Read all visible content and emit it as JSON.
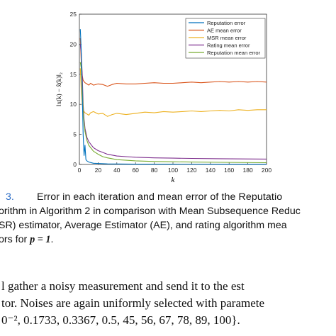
{
  "caption": {
    "fig_label": "3.",
    "line1_text": "Error in each iteration and mean error of the Reputatio",
    "line2": "orithm in Algorithm 2 in comparison with Mean Subsequence Reduc",
    "line3": "SR) estimator, Average Estimator (AE), and rating algorithm mea",
    "line4_prefix": "ors for ",
    "line4_math": "p = 1",
    "line4_suffix": "."
  },
  "body_text": {
    "line1": "l gather a noisy measurement and send it to the est",
    "line2": "tor. Noises are again uniformly selected with paramete",
    "line3": "0⁻², 0.1733, 0.3367, 0.5, 45, 56, 67, 78, 89, 100}."
  },
  "chart_data": {
    "type": "line",
    "xlabel": "k",
    "ylabel": "‖x(k) − x̂(k)‖₂",
    "xlim": [
      0,
      200
    ],
    "ylim": [
      0,
      25
    ],
    "xticks": [
      0,
      20,
      40,
      60,
      80,
      100,
      120,
      140,
      160,
      180,
      200
    ],
    "yticks": [
      0,
      5,
      10,
      15,
      20,
      25
    ],
    "legend_position": "top-right",
    "series": [
      {
        "name": "Reputation error",
        "color": "#0072bd",
        "x": [
          1,
          2,
          3,
          4,
          5,
          6,
          7,
          8,
          10,
          15,
          30,
          60,
          100,
          150,
          200
        ],
        "y": [
          22.5,
          19,
          12,
          5,
          1.5,
          3.2,
          0.8,
          0.6,
          0.4,
          0.2,
          0.1,
          0.05,
          0.05,
          0.04,
          0.04
        ]
      },
      {
        "name": "AE mean error",
        "color": "#d95319",
        "x": [
          1,
          2,
          3,
          4,
          6,
          8,
          10,
          12,
          15,
          20,
          25,
          30,
          35,
          40,
          50,
          60,
          70,
          80,
          90,
          100,
          110,
          120,
          130,
          140,
          150,
          160,
          170,
          180,
          190,
          200
        ],
        "y": [
          21,
          17,
          14.8,
          14,
          13.6,
          13.4,
          13.2,
          13.5,
          13.2,
          13.4,
          13.3,
          13.0,
          13.3,
          13.5,
          13.4,
          13.4,
          13.5,
          13.6,
          13.5,
          13.5,
          13.6,
          13.7,
          13.6,
          13.7,
          13.8,
          13.7,
          13.8,
          13.7,
          13.8,
          13.7
        ]
      },
      {
        "name": "MSR mean error",
        "color": "#edb120",
        "x": [
          1,
          2,
          3,
          4,
          6,
          8,
          10,
          12,
          15,
          20,
          25,
          30,
          35,
          40,
          50,
          60,
          70,
          80,
          90,
          100,
          110,
          120,
          130,
          140,
          150,
          160,
          170,
          180,
          190,
          200
        ],
        "y": [
          16,
          12.5,
          10,
          9,
          8.6,
          8.4,
          8.2,
          8.6,
          8.8,
          8.4,
          8.5,
          8.0,
          8.3,
          8.5,
          8.3,
          8.5,
          8.7,
          8.6,
          8.8,
          8.7,
          8.8,
          8.9,
          8.8,
          8.9,
          9.0,
          8.9,
          9.1,
          9.0,
          9.1,
          9.1
        ]
      },
      {
        "name": "Rating mean error",
        "color": "#7e2f8e",
        "x": [
          1,
          2,
          3,
          4,
          5,
          6,
          8,
          10,
          15,
          20,
          25,
          30,
          40,
          50,
          60,
          80,
          100,
          120,
          150,
          200
        ],
        "y": [
          20,
          18.5,
          15,
          10,
          7.5,
          6,
          4.5,
          3.8,
          2.8,
          2.3,
          2.0,
          1.7,
          1.4,
          1.3,
          1.2,
          1.1,
          1.05,
          1.0,
          0.95,
          0.9
        ]
      },
      {
        "name": "Reputation mean error",
        "color": "#77ac30",
        "x": [
          1,
          2,
          3,
          4,
          5,
          6,
          8,
          10,
          15,
          20,
          25,
          30,
          40,
          50,
          60,
          80,
          100,
          120,
          150,
          200
        ],
        "y": [
          17,
          16,
          13,
          9,
          6.8,
          5.5,
          4.0,
          3.2,
          2.2,
          1.7,
          1.3,
          1.1,
          0.8,
          0.7,
          0.6,
          0.5,
          0.45,
          0.4,
          0.35,
          0.3
        ]
      }
    ]
  }
}
